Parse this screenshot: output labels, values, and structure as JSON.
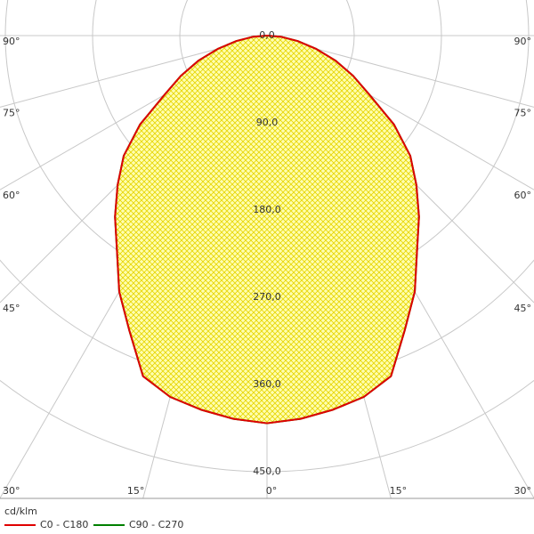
{
  "chart_data": {
    "type": "polar",
    "unit_label": "cd/klm",
    "angles": [
      0,
      5,
      10,
      15,
      20,
      25,
      30,
      35,
      40,
      45,
      50,
      55,
      60,
      65,
      70,
      75,
      80,
      85,
      90
    ],
    "series": [
      {
        "name": "C90 - C270",
        "color": "#008000",
        "values": [
          400,
          397,
          392,
          386,
          374,
          336,
          305,
          270,
          244,
          218,
          193,
          160,
          122,
          98,
          75,
          52,
          32,
          15,
          0
        ]
      },
      {
        "name": "C0 - C180",
        "color": "#e00000",
        "values": [
          400,
          397,
          392,
          386,
          374,
          336,
          305,
          270,
          244,
          218,
          193,
          160,
          122,
          98,
          75,
          52,
          32,
          15,
          0
        ]
      }
    ],
    "legend_order": [
      1,
      0
    ],
    "rlim": [
      0,
      450
    ],
    "rticks": [
      {
        "value": 0,
        "label": "0,0"
      },
      {
        "value": 90,
        "label": "90,0"
      },
      {
        "value": 180,
        "label": "180,0"
      },
      {
        "value": 270,
        "label": "270,0"
      },
      {
        "value": 360,
        "label": "360,0"
      },
      {
        "value": 450,
        "label": "450,0"
      }
    ],
    "angleticks": [
      {
        "value": 0,
        "label": "0°"
      },
      {
        "value": 15,
        "label": "15°"
      },
      {
        "value": 30,
        "label": "30°"
      },
      {
        "value": 45,
        "label": "45°"
      },
      {
        "value": 60,
        "label": "60°"
      },
      {
        "value": 75,
        "label": "75°"
      },
      {
        "value": 90,
        "label": "90°"
      }
    ],
    "fill_color": "#ffffb0",
    "hatch_color": "#e6d400",
    "grid": true
  }
}
